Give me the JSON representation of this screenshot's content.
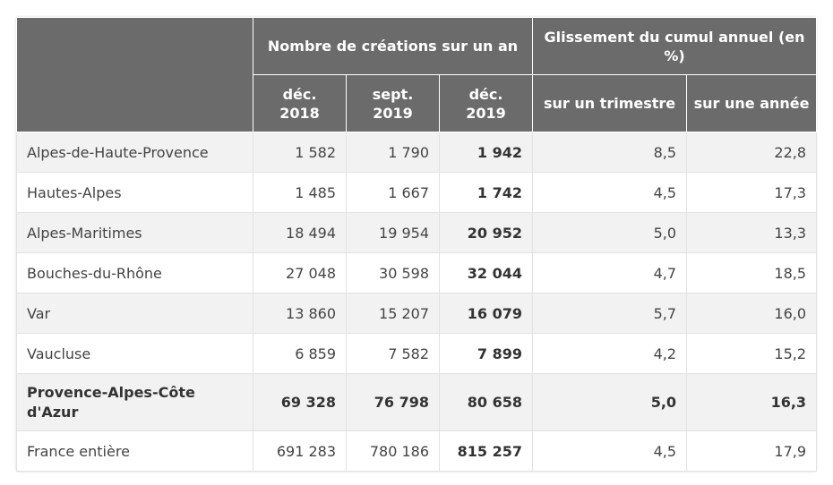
{
  "table": {
    "header": {
      "group1": "Nombre de créations sur un an",
      "group2": "Glissement du cumul annuel (en %)",
      "sub": [
        "déc. 2018",
        "sept. 2019",
        "déc. 2019",
        "sur un trimestre",
        "sur une année"
      ]
    },
    "rows": [
      {
        "label": "Alpes-de-Haute-Provence",
        "c1": "1 582",
        "c2": "1 790",
        "c3": "1 942",
        "c4": "8,5",
        "c5": "22,8"
      },
      {
        "label": "Hautes-Alpes",
        "c1": "1 485",
        "c2": "1 667",
        "c3": "1 742",
        "c4": "4,5",
        "c5": "17,3"
      },
      {
        "label": "Alpes-Maritimes",
        "c1": "18 494",
        "c2": "19 954",
        "c3": "20 952",
        "c4": "5,0",
        "c5": "13,3"
      },
      {
        "label": "Bouches-du-Rhône",
        "c1": "27 048",
        "c2": "30 598",
        "c3": "32 044",
        "c4": "4,7",
        "c5": "18,5"
      },
      {
        "label": "Var",
        "c1": "13 860",
        "c2": "15 207",
        "c3": "16 079",
        "c4": "5,7",
        "c5": "16,0"
      },
      {
        "label": "Vaucluse",
        "c1": "6 859",
        "c2": "7 582",
        "c3": "7 899",
        "c4": "4,2",
        "c5": "15,2"
      },
      {
        "label": "Provence-Alpes-Côte d'Azur",
        "c1": "69 328",
        "c2": "76 798",
        "c3": "80 658",
        "c4": "5,0",
        "c5": "16,3"
      },
      {
        "label": "France entière",
        "c1": "691 283",
        "c2": "780 186",
        "c3": "815 257",
        "c4": "4,5",
        "c5": "17,9"
      }
    ]
  }
}
